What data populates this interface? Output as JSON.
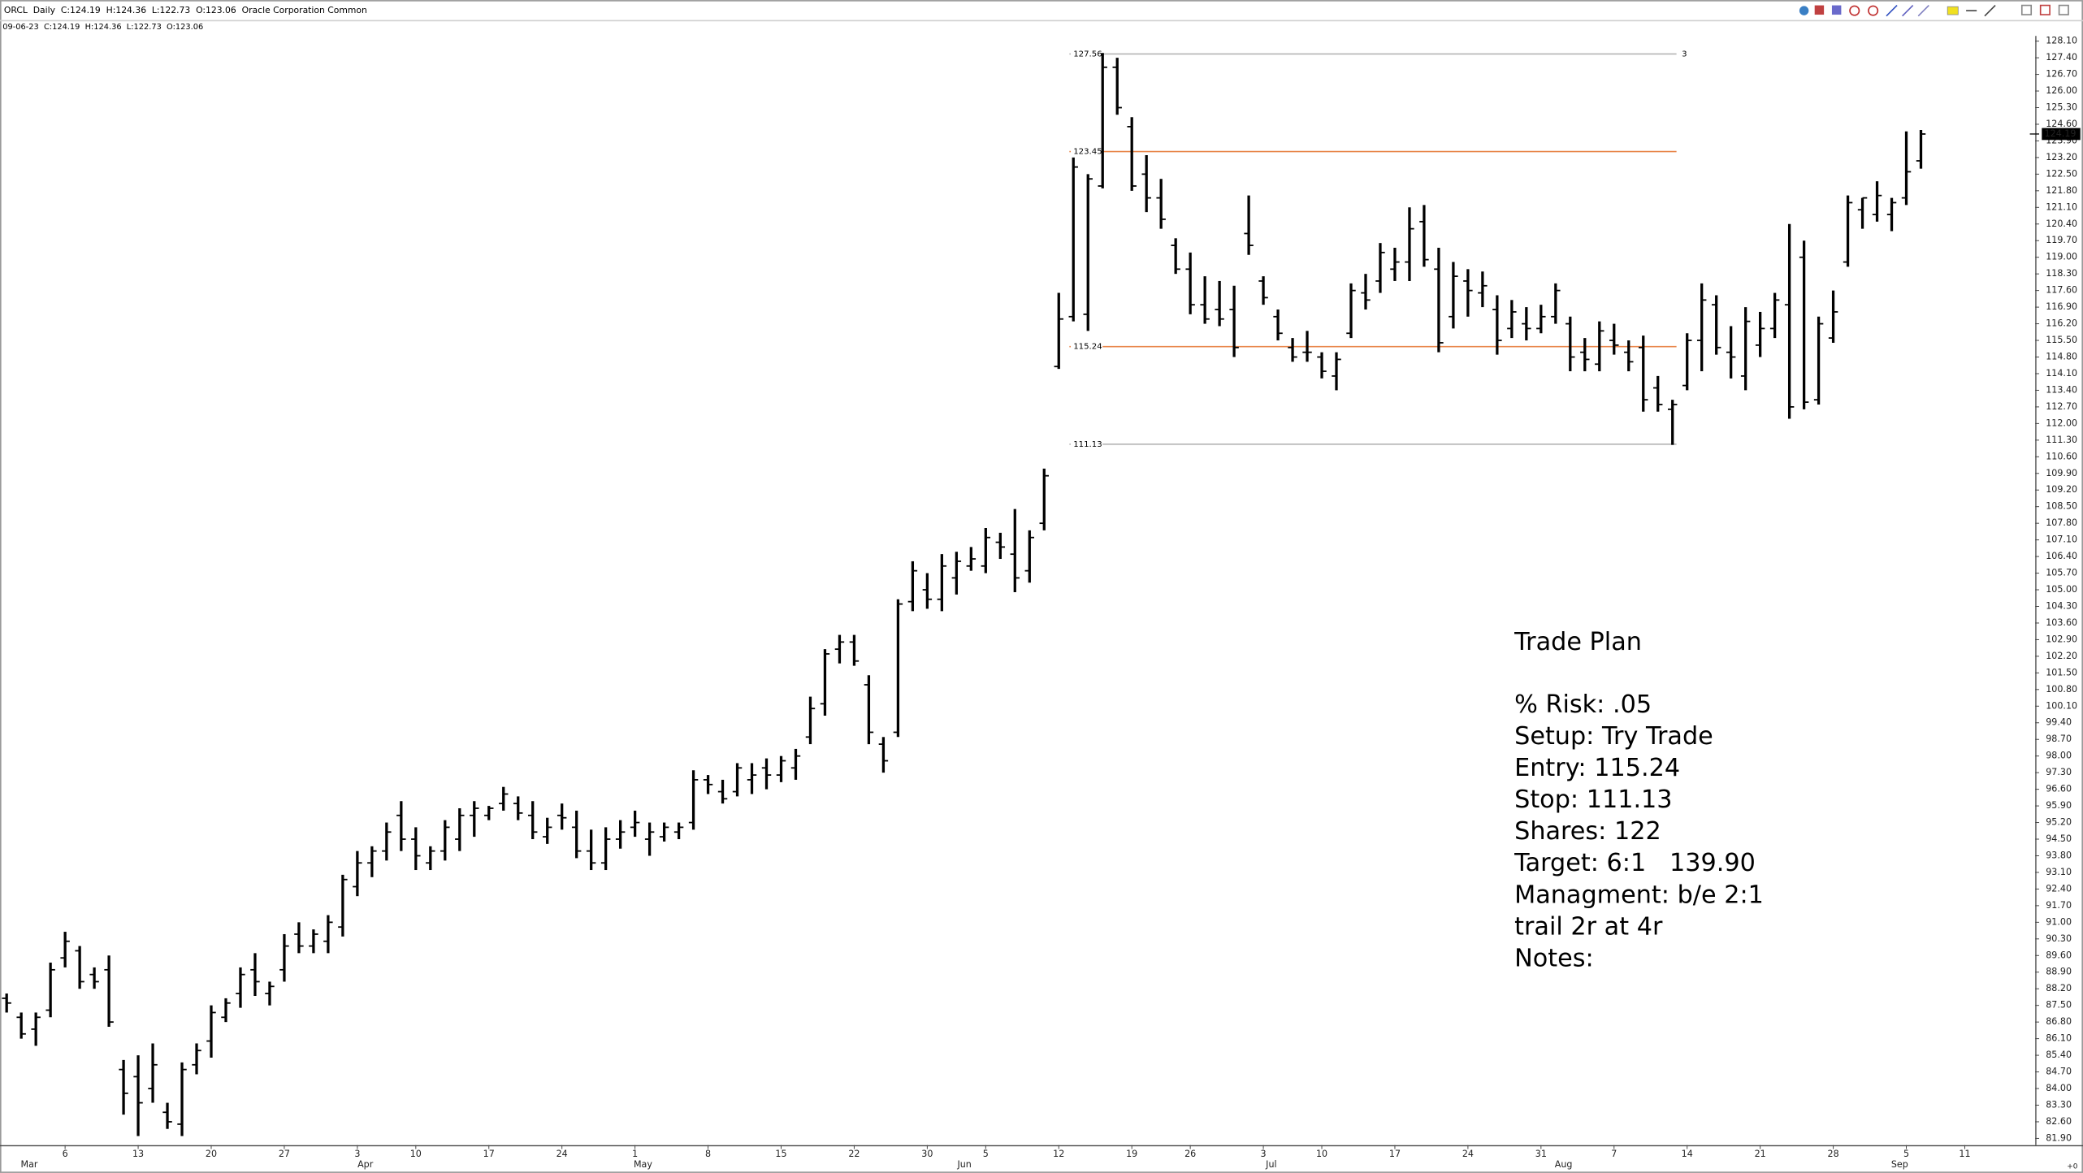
{
  "chart_data": {
    "type": "ohlc",
    "title": "ORCL  Daily  C:124.19  H:124.36  L:122.73  O:123.06  Oracle Corporation Common",
    "subtitle": "09-06-23  C:124.19  H:124.36  L:122.73  O:123.06",
    "corner_label": "+0",
    "color": "#000000",
    "categories": [
      null,
      null,
      null,
      null,
      "6",
      null,
      null,
      null,
      null,
      "13",
      null,
      null,
      null,
      null,
      "20",
      null,
      null,
      null,
      null,
      "27",
      null,
      null,
      null,
      null,
      "3",
      null,
      null,
      null,
      "10",
      null,
      null,
      null,
      null,
      "17",
      null,
      null,
      null,
      null,
      "24",
      null,
      null,
      null,
      null,
      "1",
      null,
      null,
      null,
      null,
      "8",
      null,
      null,
      null,
      null,
      "15",
      null,
      null,
      null,
      null,
      "22",
      null,
      null,
      null,
      null,
      "30",
      null,
      null,
      null,
      "5",
      null,
      null,
      null,
      null,
      "12",
      null,
      null,
      null,
      null,
      "19",
      null,
      null,
      null,
      "26",
      null,
      null,
      null,
      null,
      "3",
      null,
      null,
      null,
      "10",
      null,
      null,
      null,
      null,
      "17",
      null,
      null,
      null,
      null,
      "24",
      null,
      null,
      null,
      null,
      "31",
      null,
      null,
      null,
      null,
      "7",
      null,
      null,
      null,
      null,
      "14",
      null,
      null,
      null,
      null,
      "21",
      null,
      null,
      null,
      null,
      "28",
      null,
      null,
      null,
      null,
      "5",
      null,
      null,
      null,
      "11"
    ],
    "months": [
      null,
      "Mar",
      null,
      null,
      null,
      null,
      null,
      null,
      null,
      null,
      null,
      null,
      null,
      null,
      null,
      null,
      null,
      null,
      null,
      null,
      null,
      null,
      null,
      null,
      "Apr",
      null,
      null,
      null,
      null,
      null,
      null,
      null,
      null,
      null,
      null,
      null,
      null,
      null,
      null,
      null,
      null,
      null,
      null,
      "May",
      null,
      null,
      null,
      null,
      null,
      null,
      null,
      null,
      null,
      null,
      null,
      null,
      null,
      null,
      null,
      null,
      null,
      null,
      null,
      null,
      null,
      "Jun",
      null,
      null,
      null,
      null,
      null,
      null,
      null,
      null,
      null,
      null,
      null,
      null,
      null,
      null,
      null,
      null,
      null,
      null,
      null,
      null,
      "Jul",
      null,
      null,
      null,
      null,
      null,
      null,
      null,
      null,
      null,
      null,
      null,
      null,
      null,
      null,
      null,
      null,
      null,
      null,
      null,
      "Aug",
      null,
      null,
      null,
      null,
      null,
      null,
      null,
      null,
      null,
      null,
      null,
      null,
      null,
      null,
      null,
      null,
      null,
      null,
      null,
      null,
      null,
      null,
      "Sep",
      null,
      null,
      null,
      null,
      null
    ],
    "ohlc": {
      "open": [
        87.8,
        87.0,
        86.5,
        87.3,
        89.5,
        89.8,
        88.8,
        89.0,
        84.8,
        84.5,
        84.0,
        83.0,
        82.5,
        85.0,
        86.0,
        87.0,
        88.0,
        89.0,
        88.0,
        89.0,
        90.5,
        90.0,
        90.2,
        90.8,
        92.5,
        93.5,
        94.0,
        95.5,
        94.5,
        93.5,
        94.0,
        94.5,
        95.5,
        95.5,
        96.0,
        96.0,
        95.5,
        94.6,
        95.5,
        95.0,
        94.0,
        93.5,
        94.5,
        95.0,
        94.5,
        94.6,
        94.8,
        95.2,
        97.0,
        96.5,
        96.5,
        97.0,
        97.5,
        97.2,
        97.5,
        98.8,
        100.2,
        102.5,
        102.8,
        101.0,
        98.5,
        99.0,
        104.5,
        105.0,
        104.6,
        105.5,
        106.0,
        106.0,
        107.0,
        106.5,
        105.8,
        107.8,
        114.4,
        116.5,
        116.6,
        122.0,
        127.0,
        124.5,
        122.5,
        121.5,
        119.5,
        118.5,
        117.0,
        116.8,
        116.8,
        120.0,
        118.0,
        116.5,
        115.2,
        115.0,
        114.8,
        114.0,
        115.8,
        117.5,
        118.0,
        118.5,
        118.8,
        120.5,
        118.5,
        116.5,
        118.0,
        117.5,
        116.8,
        116.0,
        116.2,
        116.0,
        116.5,
        116.2,
        115.0,
        114.5,
        115.5,
        115.0,
        115.2,
        113.5,
        112.6,
        113.6,
        115.5,
        117.0,
        115.0,
        114.0,
        115.3,
        116.0,
        117.0,
        119.0,
        113.0,
        115.6,
        118.8,
        121.0,
        120.8,
        120.8,
        121.5,
        123.06,
        null,
        null,
        null
      ],
      "high": [
        88.0,
        87.2,
        87.2,
        89.3,
        90.6,
        90.0,
        89.1,
        89.6,
        85.2,
        85.4,
        85.9,
        83.4,
        85.1,
        85.9,
        87.5,
        87.8,
        89.1,
        89.7,
        88.5,
        90.5,
        91.0,
        90.7,
        91.3,
        93.0,
        94.0,
        94.2,
        95.2,
        96.1,
        95.0,
        94.2,
        95.3,
        95.8,
        96.1,
        95.9,
        96.7,
        96.3,
        96.1,
        95.4,
        96.0,
        95.7,
        94.9,
        95.0,
        95.3,
        95.7,
        95.2,
        95.2,
        95.2,
        97.4,
        97.2,
        97.0,
        97.7,
        97.7,
        97.9,
        98.0,
        98.3,
        100.5,
        102.5,
        103.1,
        103.1,
        101.4,
        98.8,
        104.6,
        106.2,
        105.7,
        106.5,
        106.6,
        106.8,
        107.6,
        107.4,
        108.4,
        107.5,
        110.1,
        117.5,
        123.2,
        122.5,
        127.6,
        127.4,
        124.9,
        123.3,
        122.3,
        119.8,
        119.2,
        118.2,
        118.0,
        117.8,
        121.6,
        118.2,
        116.8,
        115.6,
        115.9,
        115.0,
        115.0,
        117.9,
        118.3,
        119.6,
        119.4,
        121.1,
        121.2,
        119.4,
        118.8,
        118.5,
        118.4,
        117.4,
        117.2,
        116.9,
        117.0,
        117.9,
        116.5,
        115.6,
        116.3,
        116.2,
        115.5,
        115.7,
        114.0,
        113.0,
        115.8,
        117.9,
        117.4,
        116.1,
        116.9,
        116.7,
        117.5,
        120.4,
        119.7,
        116.5,
        117.6,
        121.6,
        121.5,
        122.2,
        121.5,
        124.3,
        124.36,
        null,
        null,
        null
      ],
      "low": [
        87.2,
        86.1,
        85.8,
        87.0,
        89.1,
        88.2,
        88.2,
        86.6,
        82.9,
        82.0,
        83.4,
        82.3,
        82.0,
        84.6,
        85.3,
        86.8,
        87.4,
        87.9,
        87.5,
        88.5,
        89.7,
        89.7,
        89.7,
        90.4,
        92.1,
        92.9,
        93.6,
        94.0,
        93.2,
        93.2,
        93.6,
        94.0,
        94.6,
        95.3,
        95.7,
        95.3,
        94.5,
        94.3,
        94.9,
        93.7,
        93.2,
        93.2,
        94.1,
        94.6,
        93.8,
        94.4,
        94.5,
        94.9,
        96.4,
        96.0,
        96.3,
        96.4,
        96.6,
        96.9,
        97.0,
        98.5,
        99.7,
        101.9,
        101.8,
        98.5,
        97.3,
        98.8,
        104.1,
        104.2,
        104.1,
        104.8,
        105.8,
        105.7,
        106.3,
        104.9,
        105.3,
        107.5,
        114.3,
        116.3,
        115.9,
        121.9,
        125.0,
        121.8,
        120.9,
        120.2,
        118.3,
        116.6,
        116.2,
        116.1,
        114.8,
        119.1,
        117.0,
        115.5,
        114.6,
        114.6,
        113.9,
        113.4,
        115.6,
        116.8,
        117.5,
        118.0,
        118.0,
        118.6,
        115.0,
        116.0,
        116.5,
        116.9,
        114.9,
        115.6,
        115.5,
        115.8,
        116.2,
        114.2,
        114.2,
        114.2,
        114.9,
        114.2,
        112.5,
        112.5,
        111.1,
        113.4,
        114.2,
        114.9,
        113.9,
        113.4,
        114.8,
        115.6,
        112.2,
        112.6,
        112.8,
        115.4,
        118.6,
        120.2,
        120.5,
        120.1,
        121.2,
        122.73,
        null,
        null,
        null
      ],
      "close": [
        87.6,
        86.3,
        87.0,
        89.0,
        90.2,
        88.5,
        88.5,
        86.8,
        83.8,
        83.4,
        85.0,
        82.6,
        84.8,
        85.6,
        87.2,
        87.6,
        88.8,
        88.5,
        88.3,
        90.0,
        90.0,
        90.5,
        91.0,
        92.8,
        93.5,
        94.0,
        94.8,
        94.5,
        93.8,
        94.0,
        95.0,
        95.5,
        95.8,
        95.8,
        96.4,
        95.6,
        94.8,
        95.0,
        95.4,
        94.0,
        93.5,
        94.5,
        94.8,
        95.2,
        94.8,
        95.0,
        95.0,
        97.0,
        96.8,
        96.2,
        97.5,
        97.2,
        97.2,
        97.8,
        98.0,
        100.0,
        102.3,
        102.8,
        102.0,
        99.0,
        97.8,
        104.4,
        105.8,
        104.6,
        106.0,
        106.2,
        106.3,
        107.2,
        106.8,
        105.5,
        107.2,
        109.8,
        116.4,
        122.8,
        122.3,
        127.0,
        125.3,
        122.0,
        121.5,
        120.6,
        118.5,
        117.0,
        116.4,
        116.4,
        115.2,
        119.5,
        117.3,
        115.8,
        114.8,
        115.0,
        114.2,
        114.7,
        117.6,
        117.2,
        119.2,
        118.8,
        120.2,
        118.9,
        115.4,
        118.2,
        117.6,
        117.8,
        115.5,
        116.7,
        116.0,
        116.5,
        117.6,
        114.8,
        114.7,
        115.9,
        115.3,
        114.6,
        113.0,
        112.8,
        112.8,
        115.5,
        117.2,
        115.2,
        114.8,
        116.3,
        116.0,
        117.2,
        112.7,
        112.9,
        116.2,
        116.7,
        121.3,
        121.5,
        121.6,
        121.3,
        122.6,
        124.19,
        null,
        null,
        null
      ]
    },
    "ylim": [
      81.62,
      128.32
    ],
    "yticks": [
      {
        "value": 128.1,
        "label": "128.10"
      },
      {
        "value": 127.4,
        "label": "127.40"
      },
      {
        "value": 126.7,
        "label": "126.70"
      },
      {
        "value": 126.0,
        "label": "126.00"
      },
      {
        "value": 125.3,
        "label": "125.30"
      },
      {
        "value": 124.6,
        "label": "124.60"
      },
      {
        "value": 123.9,
        "label": "123.90"
      },
      {
        "value": 123.2,
        "label": "123.20"
      },
      {
        "value": 122.5,
        "label": "122.50"
      },
      {
        "value": 121.8,
        "label": "121.80"
      },
      {
        "value": 121.1,
        "label": "121.10"
      },
      {
        "value": 120.4,
        "label": "120.40"
      },
      {
        "value": 119.7,
        "label": "119.70"
      },
      {
        "value": 119.0,
        "label": "119.00"
      },
      {
        "value": 118.3,
        "label": "118.30"
      },
      {
        "value": 117.6,
        "label": "117.60"
      },
      {
        "value": 116.9,
        "label": "116.90"
      },
      {
        "value": 116.2,
        "label": "116.20"
      },
      {
        "value": 115.5,
        "label": "115.50"
      },
      {
        "value": 114.8,
        "label": "114.80"
      },
      {
        "value": 114.1,
        "label": "114.10"
      },
      {
        "value": 113.4,
        "label": "113.40"
      },
      {
        "value": 112.7,
        "label": "112.70"
      },
      {
        "value": 112.0,
        "label": "112.00"
      },
      {
        "value": 111.3,
        "label": "111.30"
      },
      {
        "value": 110.6,
        "label": "110.60"
      },
      {
        "value": 109.9,
        "label": "109.90"
      },
      {
        "value": 109.2,
        "label": "109.20"
      },
      {
        "value": 108.5,
        "label": "108.50"
      },
      {
        "value": 107.8,
        "label": "107.80"
      },
      {
        "value": 107.1,
        "label": "107.10"
      },
      {
        "value": 106.4,
        "label": "106.40"
      },
      {
        "value": 105.7,
        "label": "105.70"
      },
      {
        "value": 105.0,
        "label": "105.00"
      },
      {
        "value": 104.3,
        "label": "104.30"
      },
      {
        "value": 103.6,
        "label": "103.60"
      },
      {
        "value": 102.9,
        "label": "102.90"
      },
      {
        "value": 102.2,
        "label": "102.20"
      },
      {
        "value": 101.5,
        "label": "101.50"
      },
      {
        "value": 100.8,
        "label": "100.80"
      },
      {
        "value": 100.1,
        "label": "100.10"
      },
      {
        "value": 99.4,
        "label": "99.40"
      },
      {
        "value": 98.7,
        "label": "98.70"
      },
      {
        "value": 98.0,
        "label": "98.00"
      },
      {
        "value": 97.3,
        "label": "97.30"
      },
      {
        "value": 96.6,
        "label": "96.60"
      },
      {
        "value": 95.9,
        "label": "95.90"
      },
      {
        "value": 95.2,
        "label": "95.20"
      },
      {
        "value": 94.5,
        "label": "94.50"
      },
      {
        "value": 93.8,
        "label": "93.80"
      },
      {
        "value": 93.1,
        "label": "93.10"
      },
      {
        "value": 92.4,
        "label": "92.40"
      },
      {
        "value": 91.7,
        "label": "91.70"
      },
      {
        "value": 91.0,
        "label": "91.00"
      },
      {
        "value": 90.3,
        "label": "90.30"
      },
      {
        "value": 89.6,
        "label": "89.60"
      },
      {
        "value": 88.9,
        "label": "88.90"
      },
      {
        "value": 88.2,
        "label": "88.20"
      },
      {
        "value": 87.5,
        "label": "87.50"
      },
      {
        "value": 86.8,
        "label": "86.80"
      },
      {
        "value": 86.1,
        "label": "86.10"
      },
      {
        "value": 85.4,
        "label": "85.40"
      },
      {
        "value": 84.7,
        "label": "84.70"
      },
      {
        "value": 84.0,
        "label": "84.00"
      },
      {
        "value": 83.3,
        "label": "83.30"
      },
      {
        "value": 82.6,
        "label": "82.60"
      },
      {
        "value": 81.9,
        "label": "81.90"
      }
    ],
    "grid": false,
    "levels": [
      {
        "value": 127.56,
        "color": "#b4b4b4",
        "note": "3"
      },
      {
        "value": 123.45,
        "color": "#e8864a"
      },
      {
        "value": 115.24,
        "color": "#e8864a"
      },
      {
        "value": 111.13,
        "color": "#b4b4b4"
      }
    ],
    "annotation": {
      "title": "Trade Plan",
      "lines": [
        "% Risk: .05",
        "Setup: Try Trade",
        "Entry: 115.24",
        "Stop: 111.13",
        "Shares: 122",
        "Target: 6:1   139.90",
        "Managment: b/e 2:1",
        "trail 2r at 4r",
        "Notes:"
      ]
    }
  }
}
